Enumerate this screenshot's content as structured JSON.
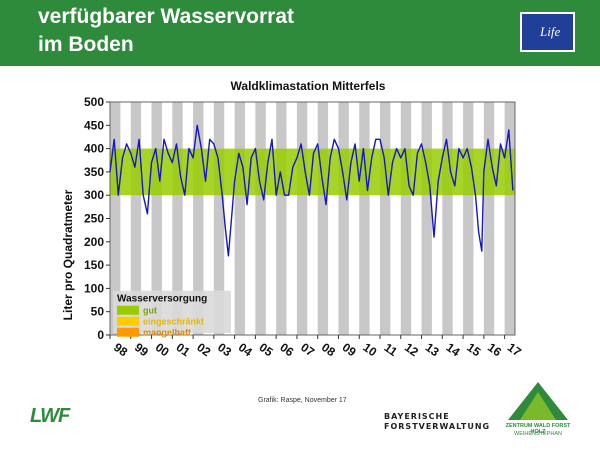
{
  "slide": {
    "title_line1": "verfügbarer Wasservorrat",
    "title_line2": "im Boden",
    "eu_logo_text": "Life",
    "credit": "Grafik: Raspe, November 17",
    "logo_lwf": "LWF",
    "logo_bayern_line1": "BAYERISCHE",
    "logo_bayern_line2": "FORSTVERWALTUNG",
    "logo_zwfh_line1": "ZENTRUM WALD FORST HOLZ",
    "logo_zwfh_line2": "WEIHENSTEPHAN"
  },
  "colors": {
    "header_bg": "#2e8b3c",
    "series_line": "#1515cc",
    "band_gut": "#99cc00",
    "band_eingeschraenkt": "#ffcc00",
    "band_mangelhaft": "#ff9900",
    "stripe": "#c8c8c8"
  },
  "chart_data": {
    "type": "line",
    "title": "Waldklimastation Mitterfels",
    "xlabel": "",
    "ylabel": "Liter pro Quadratmeter",
    "ylim": [
      0,
      500
    ],
    "yticks": [
      0,
      50,
      100,
      150,
      200,
      250,
      300,
      350,
      400,
      450,
      500
    ],
    "xlim": [
      1998.0,
      2017.5
    ],
    "xtick_labels": [
      "98",
      "99",
      "00",
      "01",
      "02",
      "03",
      "04",
      "05",
      "06",
      "07",
      "08",
      "09",
      "10",
      "11",
      "12",
      "13",
      "14",
      "15",
      "16",
      "17"
    ],
    "grid": false,
    "legend": {
      "title": "Wasserversorgung",
      "placement": "bottom-left",
      "entries": [
        {
          "label": "gut",
          "range": [
            300,
            400
          ]
        },
        {
          "label": "eingeschränkt",
          "range": null
        },
        {
          "label": "mangelhaft",
          "range": null
        }
      ]
    },
    "series": [
      {
        "x": [
          1998.0,
          1998.2,
          1998.4,
          1998.6,
          1998.8,
          1999.0,
          1999.2,
          1999.4,
          1999.6,
          1999.8,
          2000.0,
          2000.2,
          2000.4,
          2000.6,
          2000.8,
          2001.0,
          2001.2,
          2001.4,
          2001.6,
          2001.8,
          2002.0,
          2002.2,
          2002.4,
          2002.6,
          2002.8,
          2003.0,
          2003.2,
          2003.4,
          2003.55,
          2003.7,
          2003.85,
          2004.0,
          2004.2,
          2004.4,
          2004.6,
          2004.8,
          2005.0,
          2005.2,
          2005.4,
          2005.6,
          2005.8,
          2006.0,
          2006.2,
          2006.4,
          2006.6,
          2006.8,
          2007.0,
          2007.2,
          2007.4,
          2007.6,
          2007.8,
          2008.0,
          2008.2,
          2008.4,
          2008.6,
          2008.8,
          2009.0,
          2009.2,
          2009.4,
          2009.6,
          2009.8,
          2010.0,
          2010.2,
          2010.4,
          2010.6,
          2010.8,
          2011.0,
          2011.2,
          2011.4,
          2011.6,
          2011.8,
          2012.0,
          2012.2,
          2012.4,
          2012.6,
          2012.8,
          2013.0,
          2013.2,
          2013.4,
          2013.6,
          2013.8,
          2014.0,
          2014.2,
          2014.4,
          2014.6,
          2014.8,
          2015.0,
          2015.2,
          2015.4,
          2015.6,
          2015.75,
          2015.9,
          2016.0,
          2016.2,
          2016.4,
          2016.6,
          2016.8,
          2017.0,
          2017.2,
          2017.4
        ],
        "y": [
          350,
          420,
          300,
          380,
          410,
          390,
          360,
          420,
          300,
          260,
          370,
          400,
          330,
          420,
          390,
          370,
          410,
          340,
          300,
          400,
          380,
          450,
          400,
          330,
          420,
          410,
          380,
          300,
          230,
          170,
          250,
          330,
          390,
          360,
          280,
          380,
          400,
          330,
          290,
          370,
          420,
          300,
          350,
          300,
          300,
          360,
          380,
          410,
          350,
          300,
          390,
          410,
          340,
          280,
          380,
          420,
          400,
          350,
          290,
          370,
          410,
          330,
          400,
          310,
          380,
          420,
          420,
          380,
          300,
          370,
          400,
          380,
          400,
          320,
          300,
          390,
          410,
          370,
          320,
          210,
          330,
          380,
          420,
          350,
          320,
          400,
          380,
          400,
          360,
          300,
          220,
          180,
          350,
          420,
          360,
          320,
          410,
          380,
          440,
          310
        ]
      }
    ]
  }
}
